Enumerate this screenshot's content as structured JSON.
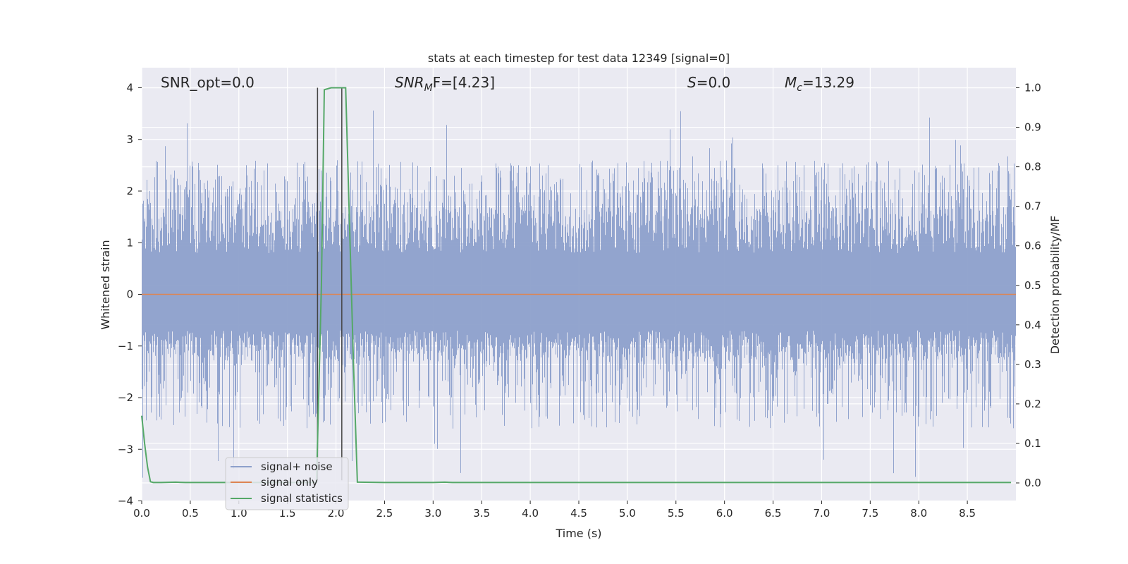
{
  "chart_data": {
    "type": "line",
    "title": "stats at each timestep for test data 12349 [signal=0]",
    "xlabel": "Time (s)",
    "ylabel": "Whitened strain",
    "ylabel_right": "Detection probability/MF",
    "xlim": [
      0.0,
      9.0
    ],
    "ylim": [
      -4.0,
      4.0
    ],
    "ylim_right": [
      0.0,
      1.0
    ],
    "x_ticks": [
      "0.0",
      "0.5",
      "1.0",
      "1.5",
      "2.0",
      "2.5",
      "3.0",
      "3.5",
      "4.0",
      "4.5",
      "5.0",
      "5.5",
      "6.0",
      "6.5",
      "7.0",
      "7.5",
      "8.0",
      "8.5"
    ],
    "y_ticks": [
      "4",
      "3",
      "2",
      "1",
      "0",
      "−1",
      "−2",
      "−3",
      "−4"
    ],
    "y_ticks_right": [
      "1.0",
      "0.9",
      "0.8",
      "0.7",
      "0.6",
      "0.5",
      "0.4",
      "0.3",
      "0.2",
      "0.1",
      "0.0"
    ],
    "grid": true,
    "background": "#eaeaf2",
    "legend_position": "lower-left",
    "annotations": {
      "snr_opt": "SNR_opt=0.0",
      "snr_mf_main": "SNR",
      "snr_mf_sub": "M",
      "snr_mf_rest": "F=[4.23]",
      "s_main": "S",
      "s_rest": "=0.0",
      "mc_main": "M",
      "mc_sub": "c",
      "mc_rest": "=13.29"
    },
    "series": [
      {
        "name": "signal+ noise",
        "color": "#8da0cb",
        "style": "noise",
        "sample_rate": 2048,
        "typical_range": [
          -1.3,
          1.7
        ],
        "peak_max": 3.6,
        "peak_min": -3.6
      },
      {
        "name": "signal only",
        "color": "#dd8452",
        "x": [
          0.0,
          9.0
        ],
        "y": [
          0.0,
          0.0
        ]
      },
      {
        "name": "signal statistics",
        "color": "#55a868",
        "axis": "right",
        "x": [
          0.0,
          0.03,
          0.06,
          0.09,
          0.12,
          0.2,
          0.35,
          0.45,
          1.0,
          1.5,
          1.76,
          1.8,
          1.85,
          1.88,
          1.95,
          2.05,
          2.1,
          2.18,
          2.22,
          2.5,
          3.0,
          3.12,
          3.2,
          4.0,
          5.0,
          6.0,
          7.0,
          8.0,
          8.95
        ],
        "y": [
          0.17,
          0.1,
          0.04,
          0.003,
          0.001,
          0.001,
          0.002,
          0.001,
          0.001,
          0.001,
          0.001,
          0.002,
          0.5,
          0.995,
          1.0,
          1.0,
          1.0,
          0.3,
          0.002,
          0.001,
          0.001,
          0.002,
          0.001,
          0.001,
          0.001,
          0.001,
          0.001,
          0.001,
          0.001
        ]
      }
    ],
    "vertical_markers": {
      "color": "#444444",
      "x": [
        1.81,
        2.06
      ],
      "y_top": 4.0,
      "y_bottom": -3.6
    }
  }
}
